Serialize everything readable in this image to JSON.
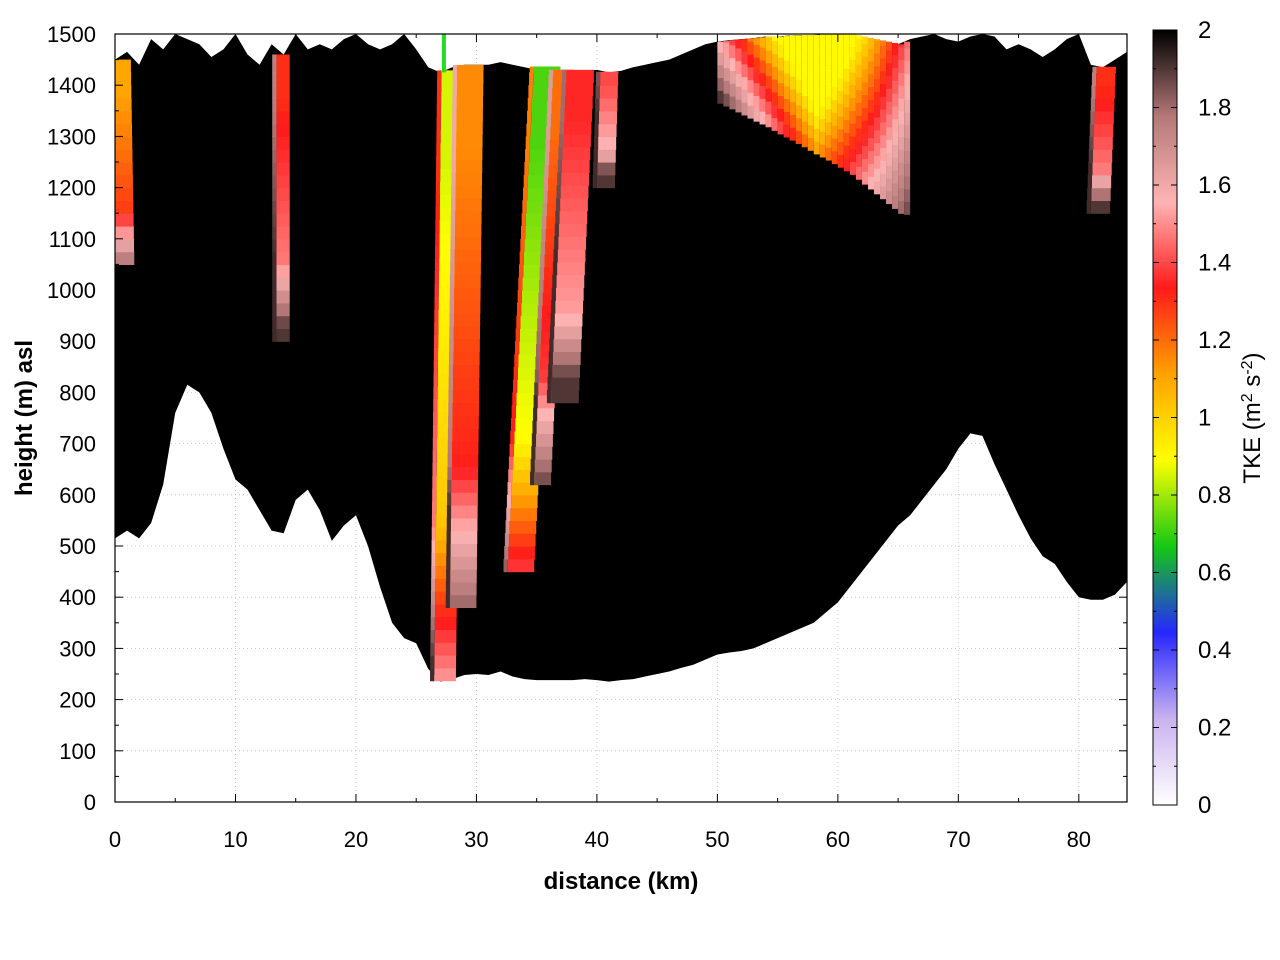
{
  "chart_data": {
    "type": "heatmap",
    "xlabel": "distance (km)",
    "ylabel": "height (m) asl",
    "xlim": [
      0,
      84
    ],
    "ylim": [
      0,
      1500
    ],
    "x_ticks": [
      "0",
      "10",
      "20",
      "30",
      "40",
      "50",
      "60",
      "70",
      "80"
    ],
    "y_ticks": [
      "0",
      "100",
      "200",
      "300",
      "400",
      "500",
      "600",
      "700",
      "800",
      "900",
      "1000",
      "1100",
      "1200",
      "1300",
      "1400",
      "1500"
    ],
    "colorbar": {
      "label_main": "TKE (m",
      "label_sup1": "2",
      "label_mid": " s",
      "label_sup2": "-2",
      "label_end": ")",
      "range": [
        0,
        2
      ],
      "ticks": [
        "0",
        "0.2",
        "0.4",
        "0.6",
        "0.8",
        "1",
        "1.2",
        "1.4",
        "1.6",
        "1.8",
        "2"
      ],
      "colors": [
        "#ffffff",
        "#c9b3f0",
        "#2626ff",
        "#14c814",
        "#ffff00",
        "#ffa200",
        "#ff1a1a",
        "#ffb4b4",
        "#b47878",
        "#000000"
      ]
    },
    "terrain_km_m": [
      [
        0,
        515
      ],
      [
        1,
        530
      ],
      [
        2,
        515
      ],
      [
        3,
        545
      ],
      [
        4,
        620
      ],
      [
        5,
        760
      ],
      [
        6,
        815
      ],
      [
        7,
        800
      ],
      [
        8,
        760
      ],
      [
        9,
        690
      ],
      [
        10,
        630
      ],
      [
        11,
        610
      ],
      [
        12,
        570
      ],
      [
        13,
        530
      ],
      [
        14,
        525
      ],
      [
        15,
        590
      ],
      [
        16,
        610
      ],
      [
        17,
        570
      ],
      [
        18,
        510
      ],
      [
        19,
        540
      ],
      [
        20,
        560
      ],
      [
        21,
        500
      ],
      [
        22,
        420
      ],
      [
        23,
        350
      ],
      [
        24,
        320
      ],
      [
        25,
        310
      ],
      [
        26,
        260
      ],
      [
        27,
        235
      ],
      [
        28,
        240
      ],
      [
        29,
        248
      ],
      [
        30,
        250
      ],
      [
        31,
        248
      ],
      [
        32,
        255
      ],
      [
        33,
        245
      ],
      [
        34,
        240
      ],
      [
        35,
        238
      ],
      [
        36,
        238
      ],
      [
        37,
        238
      ],
      [
        38,
        238
      ],
      [
        39,
        240
      ],
      [
        40,
        238
      ],
      [
        41,
        235
      ],
      [
        42,
        238
      ],
      [
        43,
        240
      ],
      [
        44,
        245
      ],
      [
        45,
        250
      ],
      [
        46,
        255
      ],
      [
        47,
        262
      ],
      [
        48,
        268
      ],
      [
        49,
        278
      ],
      [
        50,
        288
      ],
      [
        51,
        292
      ],
      [
        52,
        295
      ],
      [
        53,
        300
      ],
      [
        54,
        310
      ],
      [
        55,
        320
      ],
      [
        56,
        330
      ],
      [
        57,
        340
      ],
      [
        58,
        350
      ],
      [
        59,
        370
      ],
      [
        60,
        390
      ],
      [
        61,
        420
      ],
      [
        62,
        450
      ],
      [
        63,
        480
      ],
      [
        64,
        510
      ],
      [
        65,
        540
      ],
      [
        66,
        560
      ],
      [
        67,
        590
      ],
      [
        68,
        620
      ],
      [
        69,
        650
      ],
      [
        70,
        690
      ],
      [
        71,
        720
      ],
      [
        72,
        715
      ],
      [
        73,
        660
      ],
      [
        74,
        610
      ],
      [
        75,
        560
      ],
      [
        76,
        515
      ],
      [
        77,
        480
      ],
      [
        78,
        465
      ],
      [
        79,
        430
      ],
      [
        80,
        400
      ],
      [
        81,
        395
      ],
      [
        82,
        395
      ],
      [
        83,
        405
      ],
      [
        84,
        430
      ]
    ],
    "top_boundary_km_m": [
      [
        0,
        1450
      ],
      [
        1,
        1465
      ],
      [
        2,
        1440
      ],
      [
        3,
        1490
      ],
      [
        4,
        1470
      ],
      [
        5,
        1500
      ],
      [
        6,
        1490
      ],
      [
        7,
        1480
      ],
      [
        8,
        1455
      ],
      [
        9,
        1470
      ],
      [
        10,
        1500
      ],
      [
        11,
        1460
      ],
      [
        12,
        1440
      ],
      [
        13,
        1480
      ],
      [
        14,
        1460
      ],
      [
        15,
        1500
      ],
      [
        16,
        1470
      ],
      [
        17,
        1480
      ],
      [
        18,
        1470
      ],
      [
        19,
        1490
      ],
      [
        20,
        1500
      ],
      [
        21,
        1480
      ],
      [
        22,
        1470
      ],
      [
        23,
        1480
      ],
      [
        24,
        1500
      ],
      [
        25,
        1470
      ],
      [
        26,
        1435
      ],
      [
        27,
        1425
      ],
      [
        28,
        1435
      ],
      [
        29,
        1440
      ],
      [
        30,
        1440
      ],
      [
        31,
        1440
      ],
      [
        32,
        1445
      ],
      [
        33,
        1440
      ],
      [
        34,
        1435
      ],
      [
        35,
        1430
      ],
      [
        36,
        1430
      ],
      [
        37,
        1430
      ],
      [
        38,
        1430
      ],
      [
        39,
        1428
      ],
      [
        40,
        1430
      ],
      [
        41,
        1425
      ],
      [
        42,
        1428
      ],
      [
        43,
        1435
      ],
      [
        44,
        1440
      ],
      [
        45,
        1445
      ],
      [
        46,
        1450
      ],
      [
        47,
        1460
      ],
      [
        48,
        1470
      ],
      [
        49,
        1480
      ],
      [
        50,
        1485
      ],
      [
        51,
        1488
      ],
      [
        52,
        1490
      ],
      [
        53,
        1492
      ],
      [
        54,
        1495
      ],
      [
        55,
        1495
      ],
      [
        56,
        1497
      ],
      [
        57,
        1498
      ],
      [
        58,
        1498
      ],
      [
        59,
        1500
      ],
      [
        60,
        1500
      ],
      [
        61,
        1500
      ],
      [
        62,
        1495
      ],
      [
        63,
        1490
      ],
      [
        64,
        1485
      ],
      [
        65,
        1480
      ],
      [
        66,
        1490
      ],
      [
        67,
        1495
      ],
      [
        68,
        1500
      ],
      [
        69,
        1490
      ],
      [
        70,
        1485
      ],
      [
        71,
        1495
      ],
      [
        72,
        1500
      ],
      [
        73,
        1495
      ],
      [
        74,
        1470
      ],
      [
        75,
        1480
      ],
      [
        76,
        1470
      ],
      [
        77,
        1455
      ],
      [
        78,
        1470
      ],
      [
        79,
        1490
      ],
      [
        80,
        1500
      ],
      [
        81,
        1440
      ],
      [
        82,
        1435
      ],
      [
        83,
        1450
      ],
      [
        84,
        1465
      ]
    ],
    "plumes": [
      {
        "x0": 26.5,
        "x1": 28.3,
        "tilt": 0.6,
        "ybot": 235,
        "ytop": 1435,
        "peak": 0.85
      },
      {
        "x0": 27.8,
        "x1": 30.0,
        "tilt": 0.6,
        "ybot": 380,
        "ytop": 1440,
        "peak": 1.15
      },
      {
        "x0": 32.6,
        "x1": 34.8,
        "tilt": 2.2,
        "ybot": 450,
        "ytop": 1440,
        "peak": 0.72
      },
      {
        "x0": 34.8,
        "x1": 36.2,
        "tilt": 1.6,
        "ybot": 620,
        "ytop": 1430,
        "peak": 1.2
      },
      {
        "x0": 36.2,
        "x1": 38.5,
        "tilt": 1.3,
        "ybot": 780,
        "ytop": 1430,
        "peak": 1.35
      },
      {
        "x0": 0.0,
        "x1": 1.6,
        "tilt": -0.3,
        "ybot": 1050,
        "ytop": 1450,
        "peak": 1.1
      },
      {
        "x0": 13.4,
        "x1": 14.5,
        "tilt": 0.0,
        "ybot": 900,
        "ytop": 1460,
        "peak": 1.3
      },
      {
        "x0": 40.0,
        "x1": 41.5,
        "tilt": 0.3,
        "ybot": 1200,
        "ytop": 1428,
        "peak": 1.4
      },
      {
        "x0": 81.0,
        "x1": 82.6,
        "tilt": 0.5,
        "ybot": 1150,
        "ytop": 1440,
        "peak": 1.3
      }
    ],
    "bands": [
      {
        "x0": 50,
        "x1": 66,
        "peak": 0.9
      }
    ]
  }
}
